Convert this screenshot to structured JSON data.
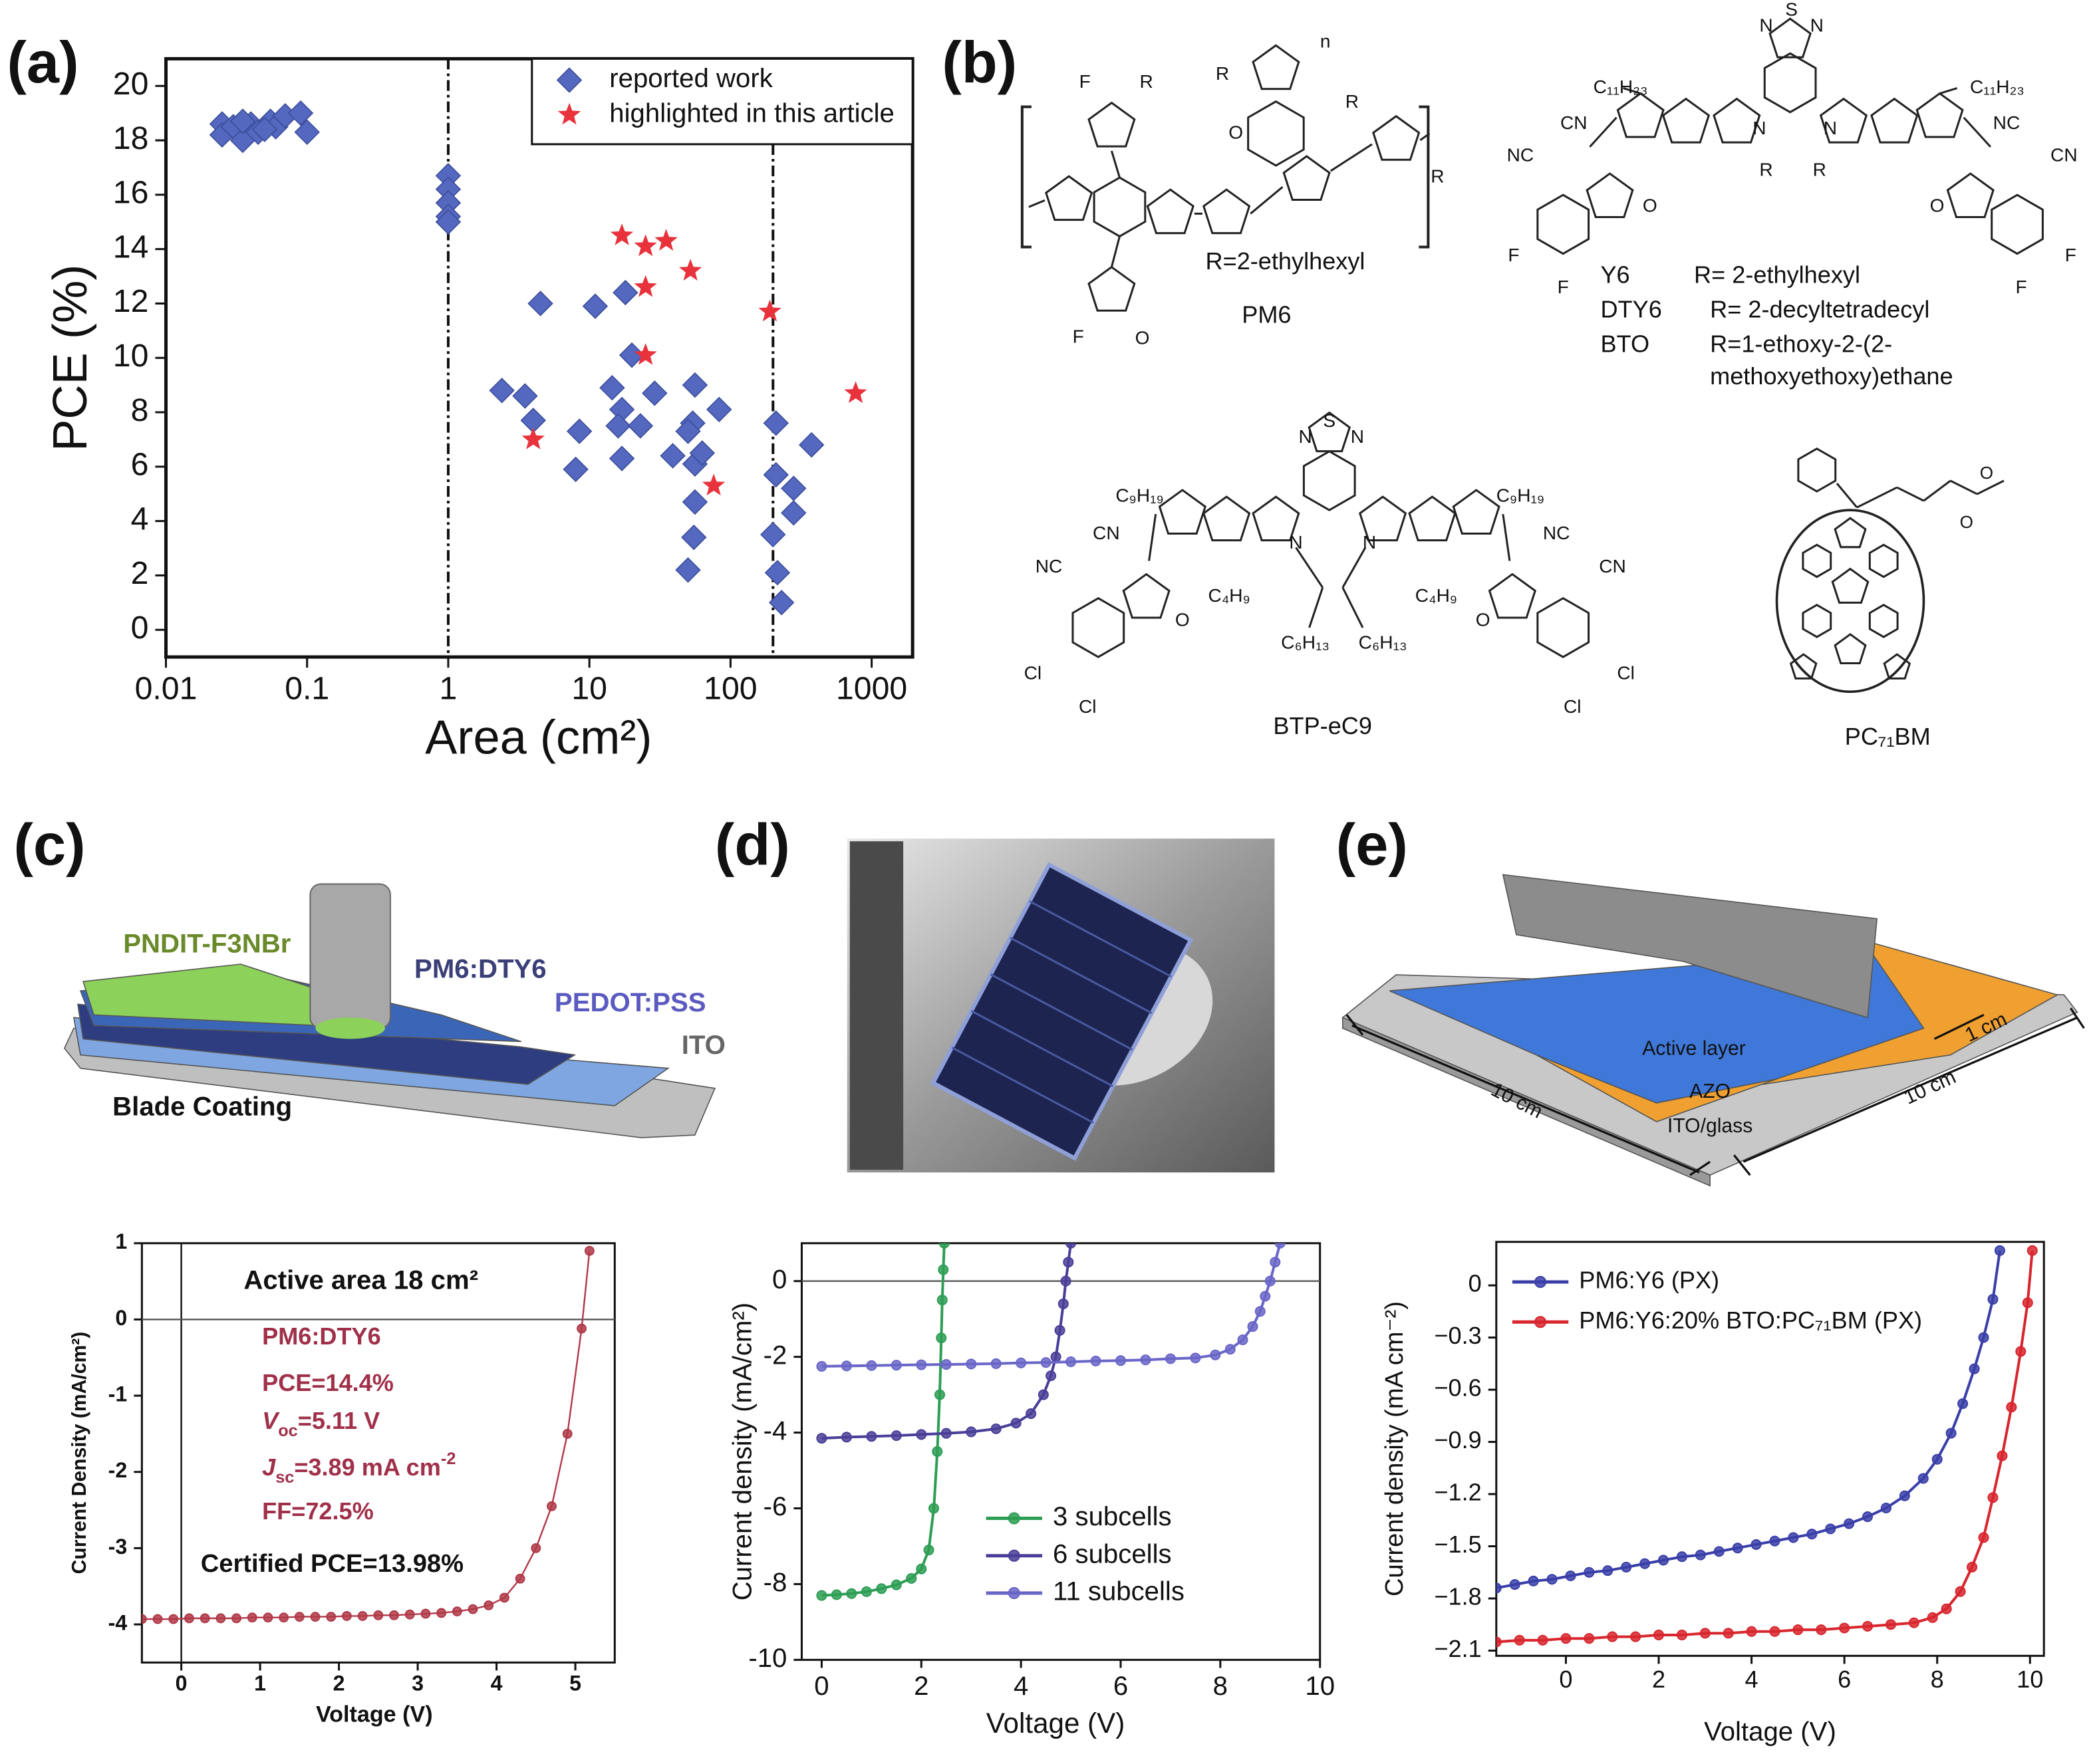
{
  "chart_data": [
    {
      "type": "scatter",
      "label": "(a)",
      "xlabel": "Area (cm²)",
      "ylabel": "PCE (%)",
      "xscale": "log",
      "xlim": [
        0.01,
        1950
      ],
      "ylim": [
        -1,
        21
      ],
      "xticks": [
        0.01,
        0.1,
        1,
        10,
        100,
        1000
      ],
      "yticks": [
        0,
        2,
        4,
        6,
        8,
        10,
        12,
        14,
        16,
        18,
        20
      ],
      "vlines": [
        1,
        200
      ],
      "legend": "upper right",
      "series": [
        {
          "name": "reported work",
          "color": "#5468c0",
          "marker": "diamond",
          "x": [
            0.025,
            0.025,
            0.03,
            0.035,
            0.04,
            0.045,
            0.055,
            0.06,
            0.07,
            0.09,
            0.1,
            0.035,
            0.05,
            1,
            1,
            1,
            1,
            1,
            4.5,
            11,
            18,
            20,
            2.4,
            3.5,
            4,
            8.5,
            8,
            14.5,
            17,
            16,
            17,
            23,
            29,
            39,
            56,
            83,
            54,
            50,
            56,
            63,
            56,
            55,
            50,
            210,
            210,
            200,
            215,
            230,
            280,
            280,
            375
          ],
          "values": [
            18.6,
            18.2,
            18.5,
            18.0,
            18.6,
            18.3,
            18.7,
            18.5,
            18.9,
            19.0,
            18.3,
            18.7,
            18.4,
            16.7,
            16.2,
            15.7,
            15.2,
            15.0,
            12.0,
            11.9,
            12.4,
            10.1,
            8.8,
            8.6,
            7.7,
            7.3,
            5.9,
            8.9,
            8.1,
            7.5,
            6.3,
            7.5,
            8.7,
            6.4,
            9.0,
            8.1,
            7.6,
            7.3,
            6.1,
            6.5,
            4.7,
            3.4,
            2.2,
            7.6,
            5.7,
            3.5,
            2.1,
            1.0,
            5.2,
            4.3,
            6.8
          ]
        },
        {
          "name": "highlighted in this article",
          "color": "#e8323c",
          "marker": "star",
          "x": [
            17,
            25,
            35,
            25,
            52,
            25,
            190,
            770,
            4,
            76
          ],
          "values": [
            14.5,
            14.1,
            14.3,
            12.6,
            13.2,
            10.1,
            11.7,
            8.7,
            7.0,
            5.3
          ]
        }
      ]
    },
    {
      "type": "line",
      "label": "(c)",
      "xlabel": "Voltage (V)",
      "ylabel": "Current Density (mA/cm²)",
      "xlim": [
        -0.5,
        5.5
      ],
      "ylim": [
        -4.5,
        1
      ],
      "xticks": [
        0,
        1,
        2,
        3,
        4,
        5
      ],
      "yticks": [
        -4,
        -3,
        -2,
        -1,
        0,
        1
      ],
      "vlines": [
        0
      ],
      "hlines": [
        0
      ],
      "annotations": [
        "Active area 18 cm²",
        "PM6:DTY6",
        "PCE=14.4%",
        [
          {
            "text": "V",
            "style": "italic"
          },
          {
            "text": "oc",
            "shift": "sub"
          },
          {
            "text": "=5.11 V"
          }
        ],
        [
          {
            "text": "J",
            "style": "italic"
          },
          {
            "text": "sc",
            "shift": "sub"
          },
          {
            "text": "=3.89 mA cm"
          },
          {
            "text": "-2",
            "shift": "super"
          }
        ],
        "FF=72.5%",
        "Certified PCE=13.98%"
      ],
      "series": [
        {
          "color": "#b03848",
          "marker": "circle",
          "x": [
            -0.5,
            -0.3,
            -0.1,
            0.1,
            0.3,
            0.5,
            0.7,
            0.9,
            1.1,
            1.3,
            1.5,
            1.7,
            1.9,
            2.1,
            2.3,
            2.5,
            2.7,
            2.9,
            3.1,
            3.3,
            3.5,
            3.7,
            3.9,
            4.1,
            4.3,
            4.5,
            4.7,
            4.9,
            5.08,
            5.18
          ],
          "values": [
            -3.93,
            -3.93,
            -3.93,
            -3.92,
            -3.92,
            -3.92,
            -3.92,
            -3.91,
            -3.91,
            -3.91,
            -3.9,
            -3.9,
            -3.9,
            -3.89,
            -3.89,
            -3.88,
            -3.88,
            -3.87,
            -3.86,
            -3.85,
            -3.83,
            -3.8,
            -3.75,
            -3.65,
            -3.4,
            -3.0,
            -2.45,
            -1.5,
            -0.12,
            0.9
          ]
        }
      ]
    },
    {
      "type": "line",
      "label": "(d)",
      "xlabel": "Voltage (V)",
      "ylabel": "Current density (mA/cm²)",
      "xlim": [
        -0.4,
        10
      ],
      "ylim": [
        -10,
        1
      ],
      "xticks": [
        0,
        2,
        4,
        6,
        8,
        10
      ],
      "yticks": [
        -10,
        -8,
        -6,
        -4,
        -2,
        0
      ],
      "hlines": [
        0
      ],
      "legend": "lower right",
      "series": [
        {
          "name": "3 subcells",
          "color": "#2e9e55",
          "marker": "circle",
          "x": [
            0,
            0.3,
            0.6,
            0.9,
            1.2,
            1.5,
            1.8,
            2.0,
            2.15,
            2.25,
            2.32,
            2.37,
            2.4,
            2.42,
            2.44,
            2.46
          ],
          "values": [
            -8.3,
            -8.28,
            -8.25,
            -8.2,
            -8.12,
            -8.02,
            -7.85,
            -7.6,
            -7.1,
            -6.0,
            -4.5,
            -3.0,
            -1.5,
            -0.5,
            0.3,
            1.0
          ]
        },
        {
          "name": "6 subcells",
          "color": "#4a3f98",
          "marker": "circle",
          "x": [
            0,
            0.5,
            1,
            1.5,
            2,
            2.5,
            3,
            3.5,
            3.9,
            4.2,
            4.45,
            4.6,
            4.7,
            4.78,
            4.85,
            4.9,
            4.95,
            5.0
          ],
          "values": [
            -4.15,
            -4.12,
            -4.1,
            -4.08,
            -4.05,
            -4.02,
            -3.98,
            -3.9,
            -3.75,
            -3.5,
            -3.0,
            -2.5,
            -2.0,
            -1.3,
            -0.6,
            0,
            0.5,
            1.0
          ]
        },
        {
          "name": "11 subcells",
          "color": "#6a66c8",
          "marker": "circle",
          "x": [
            0,
            0.5,
            1,
            1.5,
            2,
            2.5,
            3,
            3.5,
            4,
            4.5,
            5,
            5.5,
            6,
            6.5,
            7,
            7.5,
            7.9,
            8.2,
            8.45,
            8.65,
            8.8,
            8.9,
            9.0,
            9.1,
            9.2
          ],
          "values": [
            -2.25,
            -2.24,
            -2.23,
            -2.22,
            -2.21,
            -2.2,
            -2.19,
            -2.18,
            -2.16,
            -2.15,
            -2.13,
            -2.11,
            -2.1,
            -2.08,
            -2.05,
            -2.03,
            -1.95,
            -1.8,
            -1.55,
            -1.2,
            -0.8,
            -0.4,
            0,
            0.5,
            1.0
          ]
        }
      ]
    },
    {
      "type": "line",
      "label": "(e)",
      "xlabel": "Voltage (V)",
      "ylabel": "Current density (mA cm⁻²)",
      "xlim": [
        -1.5,
        10.3
      ],
      "ylim": [
        -2.13,
        0.25
      ],
      "xticks": [
        0,
        2,
        4,
        6,
        8,
        10
      ],
      "yticks": [
        0,
        {
          "value": -0.3,
          "label": "−0.3"
        },
        {
          "value": -0.6,
          "label": "−0.6"
        },
        {
          "value": -0.9,
          "label": "−0.9"
        },
        {
          "value": -1.2,
          "label": "−1.2"
        },
        {
          "value": -1.5,
          "label": "−1.5"
        },
        {
          "value": -1.8,
          "label": "−1.8"
        },
        {
          "value": -2.1,
          "label": "−2.1"
        }
      ],
      "legend": "upper left",
      "series": [
        {
          "name": "PM6:Y6 (PX)",
          "color": "#3a3fa8",
          "marker": "circle",
          "x": [
            -1.5,
            -1.1,
            -0.7,
            -0.3,
            0.1,
            0.5,
            0.9,
            1.3,
            1.7,
            2.1,
            2.5,
            2.9,
            3.3,
            3.7,
            4.1,
            4.5,
            4.9,
            5.3,
            5.7,
            6.1,
            6.5,
            6.9,
            7.3,
            7.7,
            8.0,
            8.3,
            8.55,
            8.8,
            9.0,
            9.2,
            9.35
          ],
          "values": [
            -1.74,
            -1.72,
            -1.7,
            -1.69,
            -1.67,
            -1.65,
            -1.64,
            -1.62,
            -1.6,
            -1.58,
            -1.56,
            -1.55,
            -1.53,
            -1.51,
            -1.49,
            -1.47,
            -1.45,
            -1.43,
            -1.4,
            -1.37,
            -1.33,
            -1.28,
            -1.21,
            -1.11,
            -1.0,
            -0.85,
            -0.68,
            -0.48,
            -0.3,
            -0.08,
            0.2
          ]
        },
        {
          "name": "PM6:Y6:20% BTO:PC₇₁BM (PX)",
          "color": "#d8262e",
          "marker": "circle",
          "x": [
            -1.5,
            -1.0,
            -0.5,
            0,
            0.5,
            1,
            1.5,
            2,
            2.5,
            3,
            3.5,
            4,
            4.5,
            5,
            5.5,
            6,
            6.5,
            7,
            7.5,
            7.9,
            8.2,
            8.5,
            8.75,
            9.0,
            9.2,
            9.4,
            9.6,
            9.8,
            9.95,
            10.05
          ],
          "values": [
            -2.05,
            -2.04,
            -2.04,
            -2.03,
            -2.03,
            -2.02,
            -2.02,
            -2.01,
            -2.01,
            -2.0,
            -2.0,
            -1.99,
            -1.99,
            -1.98,
            -1.98,
            -1.97,
            -1.96,
            -1.95,
            -1.94,
            -1.91,
            -1.86,
            -1.76,
            -1.62,
            -1.45,
            -1.22,
            -0.98,
            -0.7,
            -0.38,
            -0.1,
            0.2
          ]
        }
      ]
    }
  ],
  "panel_b": {
    "label": "(b)",
    "pm6": {
      "name": "PM6",
      "r_definition": "R=2-ethylhexyl",
      "labels": [
        "F",
        "R",
        "R",
        "R",
        "O",
        "O",
        "F",
        "R",
        "n"
      ]
    },
    "y6": {
      "names": [
        "Y6",
        "DTY6",
        "BTO"
      ],
      "r_definitions": [
        [
          "R= 2-ethylhexyl"
        ],
        [
          "R= 2-decyltetradecyl"
        ],
        [
          "R=1-ethoxy-2-(2-",
          "methoxyethoxy)ethane"
        ]
      ],
      "labels": [
        "C₁₁H₂₃",
        "C₁₁H₂₃",
        "NC",
        "CN",
        "NC",
        "CN",
        "N",
        "N",
        "R",
        "R",
        "S",
        "N",
        "N",
        "F",
        "F",
        "F",
        "F",
        "O",
        "O"
      ]
    },
    "btp": {
      "name": "BTP-eC9",
      "labels": [
        "C₉H₁₉",
        "C₉H₁₉",
        "NC",
        "CN",
        "NC",
        "CN",
        "N",
        "N",
        "C₄H₉",
        "C₄H₉",
        "C₆H₁₃",
        "C₆H₁₃",
        "Cl",
        "Cl",
        "Cl",
        "Cl",
        "O",
        "O",
        "S",
        "N",
        "N"
      ]
    },
    "pcbm": {
      "name": "PC₇₁BM",
      "labels": [
        "O",
        "O"
      ]
    }
  },
  "diagram_c": {
    "labels": [
      "PNDIT-F3NBr",
      "PM6:DTY6",
      "PEDOT:PSS",
      "ITO",
      "Blade Coating"
    ]
  },
  "diagram_e": {
    "labels": [
      "Active layer",
      "AZO",
      "ITO/glass",
      "10 cm",
      "10 cm",
      "1 cm"
    ]
  }
}
